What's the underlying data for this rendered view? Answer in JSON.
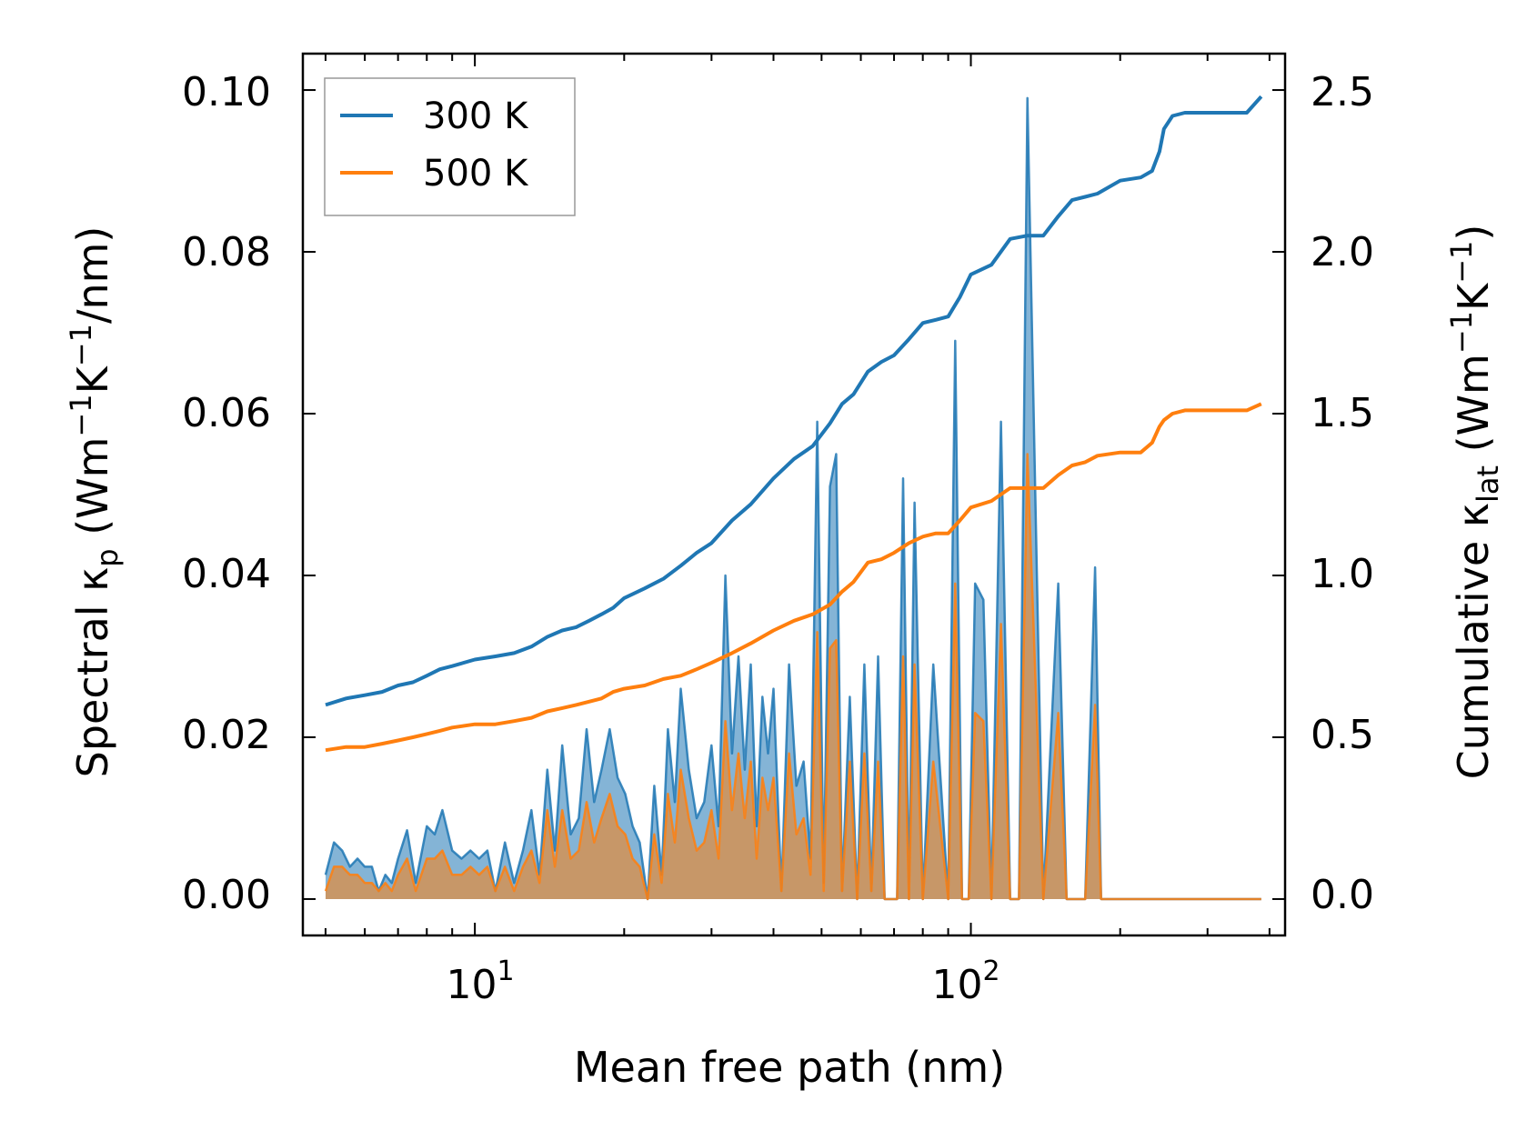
{
  "chart_data": {
    "type": "line",
    "xlabel": "Mean free path (nm)",
    "xscale": "log",
    "xlim": [
      4.5,
      430
    ],
    "x_tick_labels": [
      {
        "base": "10",
        "exp": "1",
        "value": 10
      },
      {
        "base": "10",
        "exp": "2",
        "value": 100
      }
    ],
    "ylabel_left": {
      "main": "Spectral κ",
      "sub": "p",
      "units_pre": " (Wm",
      "sup1": "−1",
      "mid": "K",
      "sup2": "−1",
      "units_post": "/nm)"
    },
    "ylim_left": [
      -0.0045,
      0.1045
    ],
    "y_ticks_left": [
      "0.00",
      "0.02",
      "0.04",
      "0.06",
      "0.08",
      "0.10"
    ],
    "ylabel_right": {
      "main": "Cumulative κ",
      "sub": "lat",
      "units_pre": " (Wm",
      "sup1": "−1",
      "mid": "K",
      "sup2": "−1",
      "units_post": ")"
    },
    "ylim_right": [
      -0.1125,
      2.6125
    ],
    "y_ticks_right": [
      "0.0",
      "0.5",
      "1.0",
      "1.5",
      "2.0",
      "2.5"
    ],
    "legend": {
      "location": "upper-left",
      "entries": [
        {
          "label": "300 K",
          "color": "#1f77b4"
        },
        {
          "label": "500 K",
          "color": "#ff7f0e"
        }
      ]
    },
    "series": [
      {
        "name": "300 K spectral",
        "axis": "left",
        "kind": "filled-line",
        "color": "#1f77b4",
        "x": [
          5.0,
          5.2,
          5.4,
          5.6,
          5.8,
          6.0,
          6.2,
          6.4,
          6.6,
          6.8,
          7.0,
          7.3,
          7.6,
          8.0,
          8.3,
          8.6,
          9.0,
          9.4,
          9.8,
          10.2,
          10.6,
          11.0,
          11.5,
          12.0,
          12.5,
          13.0,
          13.5,
          14.0,
          14.5,
          15.0,
          15.6,
          16.2,
          16.8,
          17.4,
          18.0,
          18.7,
          19.4,
          20.1,
          20.8,
          21.5,
          22.3,
          23.0,
          23.8,
          24.5,
          25.3,
          26.0,
          27.0,
          28.0,
          29.0,
          30.0,
          31.0,
          32.0,
          33.0,
          34.0,
          35.0,
          36.0,
          37.0,
          38.0,
          39.0,
          40.0,
          41.5,
          43.0,
          44.5,
          46.0,
          47.5,
          49.0,
          50.5,
          52.0,
          53.5,
          55.0,
          57.0,
          59.0,
          61.0,
          63.0,
          65.0,
          67.0,
          69.0,
          71.0,
          73.0,
          75.0,
          77.0,
          80.0,
          84.0,
          90.0,
          93.0,
          96.0,
          99.0,
          102.0,
          106.0,
          110.0,
          115.0,
          120.0,
          125.0,
          130.0,
          140.0,
          150.0,
          156.0,
          162.0,
          170.0,
          178.0,
          183.0,
          190.0,
          200.0,
          220.0,
          232.0,
          240.0,
          245.0,
          252.0,
          258.0,
          264.0,
          270.0,
          300.0,
          330.0,
          370.0,
          380.0,
          385.0
        ],
        "y": [
          0.003,
          0.007,
          0.006,
          0.004,
          0.005,
          0.004,
          0.004,
          0.001,
          0.003,
          0.002,
          0.005,
          0.0085,
          0.002,
          0.009,
          0.008,
          0.011,
          0.006,
          0.005,
          0.006,
          0.005,
          0.006,
          0.001,
          0.007,
          0.002,
          0.006,
          0.011,
          0.003,
          0.016,
          0.006,
          0.019,
          0.008,
          0.01,
          0.021,
          0.012,
          0.016,
          0.021,
          0.015,
          0.013,
          0.009,
          0.007,
          0.0,
          0.014,
          0.003,
          0.021,
          0.012,
          0.026,
          0.016,
          0.01,
          0.012,
          0.019,
          0.009,
          0.04,
          0.018,
          0.03,
          0.016,
          0.029,
          0.009,
          0.025,
          0.018,
          0.026,
          0.001,
          0.029,
          0.014,
          0.017,
          0.005,
          0.059,
          0.002,
          0.051,
          0.055,
          0.001,
          0.025,
          0.0,
          0.029,
          0.001,
          0.03,
          0.0,
          0.0,
          0.0,
          0.052,
          0.0,
          0.049,
          0.0,
          0.029,
          0.0,
          0.069,
          0.0,
          0.0,
          0.039,
          0.037,
          0.0,
          0.059,
          0.0,
          0.0,
          0.099,
          0.0,
          0.039,
          0.0,
          0.0,
          0.0,
          0.041,
          0.0,
          0.0,
          0.0,
          0.0,
          0.0,
          0.0,
          0.0,
          0.0,
          0.0,
          0.0,
          0.0,
          0.0,
          0.0,
          0.0,
          0.0,
          0.0
        ]
      },
      {
        "name": "500 K spectral",
        "axis": "left",
        "kind": "filled-line",
        "color": "#ff7f0e",
        "x": [
          5.0,
          5.2,
          5.4,
          5.6,
          5.8,
          6.0,
          6.2,
          6.4,
          6.6,
          6.8,
          7.0,
          7.3,
          7.6,
          8.0,
          8.3,
          8.6,
          9.0,
          9.4,
          9.8,
          10.2,
          10.6,
          11.0,
          11.5,
          12.0,
          12.5,
          13.0,
          13.5,
          14.0,
          14.5,
          15.0,
          15.6,
          16.2,
          16.8,
          17.4,
          18.0,
          18.7,
          19.4,
          20.1,
          20.8,
          21.5,
          22.3,
          23.0,
          23.8,
          24.5,
          25.3,
          26.0,
          27.0,
          28.0,
          29.0,
          30.0,
          31.0,
          32.0,
          33.0,
          34.0,
          35.0,
          36.0,
          37.0,
          38.0,
          39.0,
          40.0,
          41.5,
          43.0,
          44.5,
          46.0,
          47.5,
          49.0,
          50.5,
          52.0,
          53.5,
          55.0,
          57.0,
          59.0,
          61.0,
          63.0,
          65.0,
          67.0,
          69.0,
          71.0,
          73.0,
          75.0,
          77.0,
          80.0,
          84.0,
          90.0,
          93.0,
          96.0,
          99.0,
          102.0,
          106.0,
          110.0,
          115.0,
          120.0,
          125.0,
          130.0,
          140.0,
          150.0,
          156.0,
          162.0,
          170.0,
          178.0,
          183.0,
          190.0,
          200.0,
          220.0,
          232.0,
          240.0,
          245.0,
          252.0,
          258.0,
          264.0,
          270.0,
          300.0,
          330.0,
          370.0,
          380.0,
          385.0
        ],
        "y": [
          0.001,
          0.004,
          0.004,
          0.003,
          0.003,
          0.002,
          0.002,
          0.001,
          0.002,
          0.001,
          0.003,
          0.005,
          0.001,
          0.005,
          0.005,
          0.006,
          0.003,
          0.003,
          0.004,
          0.003,
          0.004,
          0.001,
          0.004,
          0.001,
          0.004,
          0.006,
          0.002,
          0.011,
          0.004,
          0.011,
          0.005,
          0.006,
          0.012,
          0.007,
          0.01,
          0.013,
          0.009,
          0.008,
          0.005,
          0.004,
          0.0,
          0.008,
          0.002,
          0.013,
          0.007,
          0.016,
          0.01,
          0.006,
          0.007,
          0.011,
          0.005,
          0.022,
          0.011,
          0.018,
          0.01,
          0.017,
          0.005,
          0.015,
          0.011,
          0.015,
          0.001,
          0.018,
          0.008,
          0.01,
          0.003,
          0.033,
          0.001,
          0.031,
          0.032,
          0.001,
          0.017,
          0.0,
          0.018,
          0.001,
          0.017,
          0.0,
          0.0,
          0.0,
          0.03,
          0.0,
          0.029,
          0.0,
          0.017,
          0.0,
          0.039,
          0.0,
          0.0,
          0.023,
          0.022,
          0.0,
          0.034,
          0.0,
          0.0,
          0.055,
          0.0,
          0.023,
          0.0,
          0.0,
          0.0,
          0.024,
          0.0,
          0.0,
          0.0,
          0.0,
          0.0,
          0.0,
          0.0,
          0.0,
          0.0,
          0.0,
          0.0,
          0.0,
          0.0,
          0.0,
          0.0,
          0.0
        ]
      },
      {
        "name": "300 K",
        "axis": "right",
        "kind": "line",
        "color": "#1f77b4",
        "x": [
          5.0,
          5.5,
          6.0,
          6.5,
          7.0,
          7.5,
          8.0,
          8.5,
          9.0,
          10.0,
          11.0,
          12.0,
          13.0,
          14.0,
          15.0,
          16.0,
          17.0,
          18.0,
          19.0,
          20.0,
          22.0,
          24.0,
          26.0,
          28.0,
          30.0,
          33.0,
          36.0,
          40.0,
          44.0,
          48.0,
          52.0,
          55.0,
          58.0,
          62.0,
          66.0,
          70.0,
          75.0,
          80.0,
          85.0,
          90.0,
          95.0,
          100.0,
          110.0,
          120.0,
          130.0,
          140.0,
          150.0,
          160.0,
          170.0,
          180.0,
          200.0,
          220.0,
          232.0,
          240.0,
          245.0,
          255.0,
          270.0,
          300.0,
          330.0,
          360.0,
          385.0
        ],
        "y": [
          0.6,
          0.62,
          0.63,
          0.64,
          0.66,
          0.67,
          0.69,
          0.71,
          0.72,
          0.74,
          0.75,
          0.76,
          0.78,
          0.81,
          0.83,
          0.84,
          0.86,
          0.88,
          0.9,
          0.93,
          0.96,
          0.99,
          1.03,
          1.07,
          1.1,
          1.17,
          1.22,
          1.3,
          1.36,
          1.4,
          1.47,
          1.53,
          1.56,
          1.63,
          1.66,
          1.68,
          1.73,
          1.78,
          1.79,
          1.8,
          1.86,
          1.93,
          1.96,
          2.04,
          2.05,
          2.05,
          2.11,
          2.16,
          2.17,
          2.18,
          2.22,
          2.23,
          2.25,
          2.31,
          2.38,
          2.42,
          2.43,
          2.43,
          2.43,
          2.43,
          2.48
        ]
      },
      {
        "name": "500 K",
        "axis": "right",
        "kind": "line",
        "color": "#ff7f0e",
        "x": [
          5.0,
          5.5,
          6.0,
          6.5,
          7.0,
          7.5,
          8.0,
          8.5,
          9.0,
          10.0,
          11.0,
          12.0,
          13.0,
          14.0,
          15.0,
          16.0,
          17.0,
          18.0,
          19.0,
          20.0,
          22.0,
          24.0,
          26.0,
          28.0,
          30.0,
          33.0,
          36.0,
          40.0,
          44.0,
          48.0,
          52.0,
          55.0,
          58.0,
          62.0,
          66.0,
          70.0,
          75.0,
          80.0,
          85.0,
          90.0,
          95.0,
          100.0,
          110.0,
          120.0,
          130.0,
          140.0,
          150.0,
          160.0,
          170.0,
          180.0,
          200.0,
          220.0,
          232.0,
          240.0,
          245.0,
          255.0,
          270.0,
          300.0,
          330.0,
          360.0,
          385.0
        ],
        "y": [
          0.46,
          0.47,
          0.47,
          0.48,
          0.49,
          0.5,
          0.51,
          0.52,
          0.53,
          0.54,
          0.54,
          0.55,
          0.56,
          0.58,
          0.59,
          0.6,
          0.61,
          0.62,
          0.64,
          0.65,
          0.66,
          0.68,
          0.69,
          0.71,
          0.73,
          0.76,
          0.79,
          0.83,
          0.86,
          0.88,
          0.91,
          0.95,
          0.98,
          1.04,
          1.05,
          1.07,
          1.1,
          1.12,
          1.13,
          1.13,
          1.17,
          1.21,
          1.23,
          1.27,
          1.27,
          1.27,
          1.31,
          1.34,
          1.35,
          1.37,
          1.38,
          1.38,
          1.41,
          1.46,
          1.48,
          1.5,
          1.51,
          1.51,
          1.51,
          1.51,
          1.53
        ]
      }
    ]
  }
}
